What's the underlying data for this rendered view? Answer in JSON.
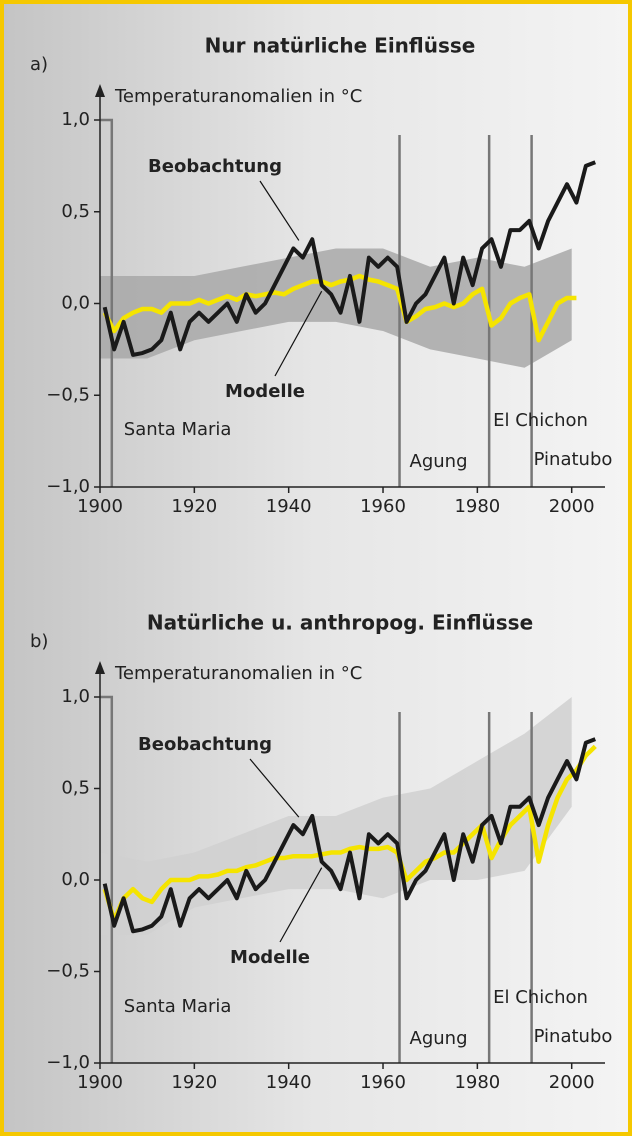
{
  "chart_data": [
    {
      "type": "line",
      "panel_label": "a)",
      "title": "Nur natürliche Einflüsse",
      "ylabel": "Temperaturanomalien in °C",
      "xlim": [
        1900,
        2006
      ],
      "xticks": [
        1900,
        1920,
        1940,
        1960,
        1980,
        2000
      ],
      "ylim": [
        -1,
        1
      ],
      "yticks": [
        {
          "value": 1,
          "label": "1,0"
        },
        {
          "value": 0.5,
          "label": "0,5"
        },
        {
          "value": 0,
          "label": "0,0"
        },
        {
          "value": -0.5,
          "label": "−0,5"
        },
        {
          "value": -1,
          "label": "−1,0"
        }
      ],
      "x": [
        1901,
        1903,
        1905,
        1907,
        1909,
        1911,
        1913,
        1915,
        1917,
        1919,
        1921,
        1923,
        1925,
        1927,
        1929,
        1931,
        1933,
        1935,
        1937,
        1939,
        1941,
        1943,
        1945,
        1947,
        1949,
        1951,
        1953,
        1955,
        1957,
        1959,
        1961,
        1963,
        1965,
        1967,
        1969,
        1971,
        1973,
        1975,
        1977,
        1979,
        1981,
        1983,
        1985,
        1987,
        1989,
        1991,
        1993,
        1995,
        1997,
        1999,
        2001,
        2003,
        2005
      ],
      "series": [
        {
          "name": "Beobachtung",
          "color": "#1a1a1a",
          "values": [
            -0.02,
            -0.25,
            -0.1,
            -0.28,
            -0.27,
            -0.25,
            -0.2,
            -0.05,
            -0.25,
            -0.1,
            -0.05,
            -0.1,
            -0.05,
            0.0,
            -0.1,
            0.05,
            -0.05,
            0.0,
            0.1,
            0.2,
            0.3,
            0.25,
            0.35,
            0.1,
            0.05,
            -0.05,
            0.15,
            -0.1,
            0.25,
            0.2,
            0.25,
            0.2,
            -0.1,
            0.0,
            0.05,
            0.15,
            0.25,
            0.0,
            0.25,
            0.1,
            0.3,
            0.35,
            0.2,
            0.4,
            0.4,
            0.45,
            0.3,
            0.45,
            0.55,
            0.65,
            0.55,
            0.75,
            0.77
          ]
        },
        {
          "name": "Modelle",
          "color": "#f5e400",
          "values": [
            -0.05,
            -0.15,
            -0.08,
            -0.05,
            -0.03,
            -0.03,
            -0.05,
            0.0,
            0.0,
            0.0,
            0.02,
            0.0,
            0.02,
            0.04,
            0.02,
            0.05,
            0.04,
            0.05,
            0.06,
            0.05,
            0.08,
            0.1,
            0.12,
            0.12,
            0.1,
            0.12,
            0.13,
            0.15,
            0.13,
            0.12,
            0.1,
            0.08,
            -0.1,
            -0.07,
            -0.03,
            -0.02,
            0.0,
            -0.02,
            0.0,
            0.05,
            0.08,
            -0.12,
            -0.08,
            0.0,
            0.03,
            0.05,
            -0.2,
            -0.1,
            0.0,
            0.03,
            0.03,
            null,
            null
          ]
        }
      ],
      "band": {
        "color": "#a8a8a8",
        "x": [
          1900,
          1910,
          1920,
          1930,
          1940,
          1950,
          1960,
          1970,
          1980,
          1990,
          2000
        ],
        "lower": [
          -0.3,
          -0.3,
          -0.2,
          -0.15,
          -0.1,
          -0.1,
          -0.15,
          -0.25,
          -0.3,
          -0.35,
          -0.2
        ],
        "upper": [
          0.15,
          0.15,
          0.15,
          0.2,
          0.25,
          0.3,
          0.3,
          0.2,
          0.25,
          0.2,
          0.3
        ]
      },
      "volcanoes": [
        {
          "label": "Santa Maria",
          "x": 1902.5
        },
        {
          "label": "Agung",
          "x": 1963.5
        },
        {
          "label": "El Chichon",
          "x": 1982.5
        },
        {
          "label": "Pinatubo",
          "x": 1991.5
        }
      ]
    },
    {
      "type": "line",
      "panel_label": "b)",
      "title": "Natürliche u. anthropog. Einflüsse",
      "ylabel": "Temperaturanomalien in °C",
      "xlim": [
        1900,
        2006
      ],
      "xticks": [
        1900,
        1920,
        1940,
        1960,
        1980,
        2000
      ],
      "ylim": [
        -1,
        1
      ],
      "yticks": [
        {
          "value": 1,
          "label": "1,0"
        },
        {
          "value": 0.5,
          "label": "0,5"
        },
        {
          "value": 0,
          "label": "0,0"
        },
        {
          "value": -0.5,
          "label": "−0,5"
        },
        {
          "value": -1,
          "label": "−1,0"
        }
      ],
      "x": [
        1901,
        1903,
        1905,
        1907,
        1909,
        1911,
        1913,
        1915,
        1917,
        1919,
        1921,
        1923,
        1925,
        1927,
        1929,
        1931,
        1933,
        1935,
        1937,
        1939,
        1941,
        1943,
        1945,
        1947,
        1949,
        1951,
        1953,
        1955,
        1957,
        1959,
        1961,
        1963,
        1965,
        1967,
        1969,
        1971,
        1973,
        1975,
        1977,
        1979,
        1981,
        1983,
        1985,
        1987,
        1989,
        1991,
        1993,
        1995,
        1997,
        1999,
        2001,
        2003,
        2005
      ],
      "series": [
        {
          "name": "Beobachtung",
          "color": "#1a1a1a",
          "values": [
            -0.02,
            -0.25,
            -0.1,
            -0.28,
            -0.27,
            -0.25,
            -0.2,
            -0.05,
            -0.25,
            -0.1,
            -0.05,
            -0.1,
            -0.05,
            0.0,
            -0.1,
            0.05,
            -0.05,
            0.0,
            0.1,
            0.2,
            0.3,
            0.25,
            0.35,
            0.1,
            0.05,
            -0.05,
            0.15,
            -0.1,
            0.25,
            0.2,
            0.25,
            0.2,
            -0.1,
            0.0,
            0.05,
            0.15,
            0.25,
            0.0,
            0.25,
            0.1,
            0.3,
            0.35,
            0.2,
            0.4,
            0.4,
            0.45,
            0.3,
            0.45,
            0.55,
            0.65,
            0.55,
            0.75,
            0.77
          ]
        },
        {
          "name": "Modelle",
          "color": "#f5e400",
          "values": [
            -0.05,
            -0.22,
            -0.1,
            -0.05,
            -0.1,
            -0.12,
            -0.05,
            0.0,
            0.0,
            0.0,
            0.02,
            0.02,
            0.03,
            0.05,
            0.05,
            0.07,
            0.08,
            0.1,
            0.12,
            0.12,
            0.13,
            0.13,
            0.13,
            0.14,
            0.15,
            0.15,
            0.17,
            0.18,
            0.17,
            0.17,
            0.18,
            0.15,
            0.0,
            0.05,
            0.1,
            0.12,
            0.15,
            0.15,
            0.2,
            0.25,
            0.3,
            0.12,
            0.22,
            0.3,
            0.35,
            0.4,
            0.1,
            0.3,
            0.45,
            0.55,
            0.6,
            0.68,
            0.73
          ]
        }
      ],
      "band": {
        "color": "#d0d0d0",
        "x": [
          1900,
          1910,
          1920,
          1930,
          1940,
          1950,
          1960,
          1970,
          1980,
          1990,
          2000
        ],
        "lower": [
          -0.3,
          -0.3,
          -0.15,
          -0.1,
          -0.05,
          -0.05,
          -0.1,
          0.0,
          0.0,
          0.05,
          0.4
        ],
        "upper": [
          0.15,
          0.1,
          0.15,
          0.25,
          0.35,
          0.35,
          0.45,
          0.5,
          0.65,
          0.8,
          1.0
        ]
      },
      "volcanoes": [
        {
          "label": "Santa Maria",
          "x": 1902.5
        },
        {
          "label": "Agung",
          "x": 1963.5
        },
        {
          "label": "El Chichon",
          "x": 1982.5
        },
        {
          "label": "Pinatubo",
          "x": 1991.5
        }
      ]
    }
  ]
}
